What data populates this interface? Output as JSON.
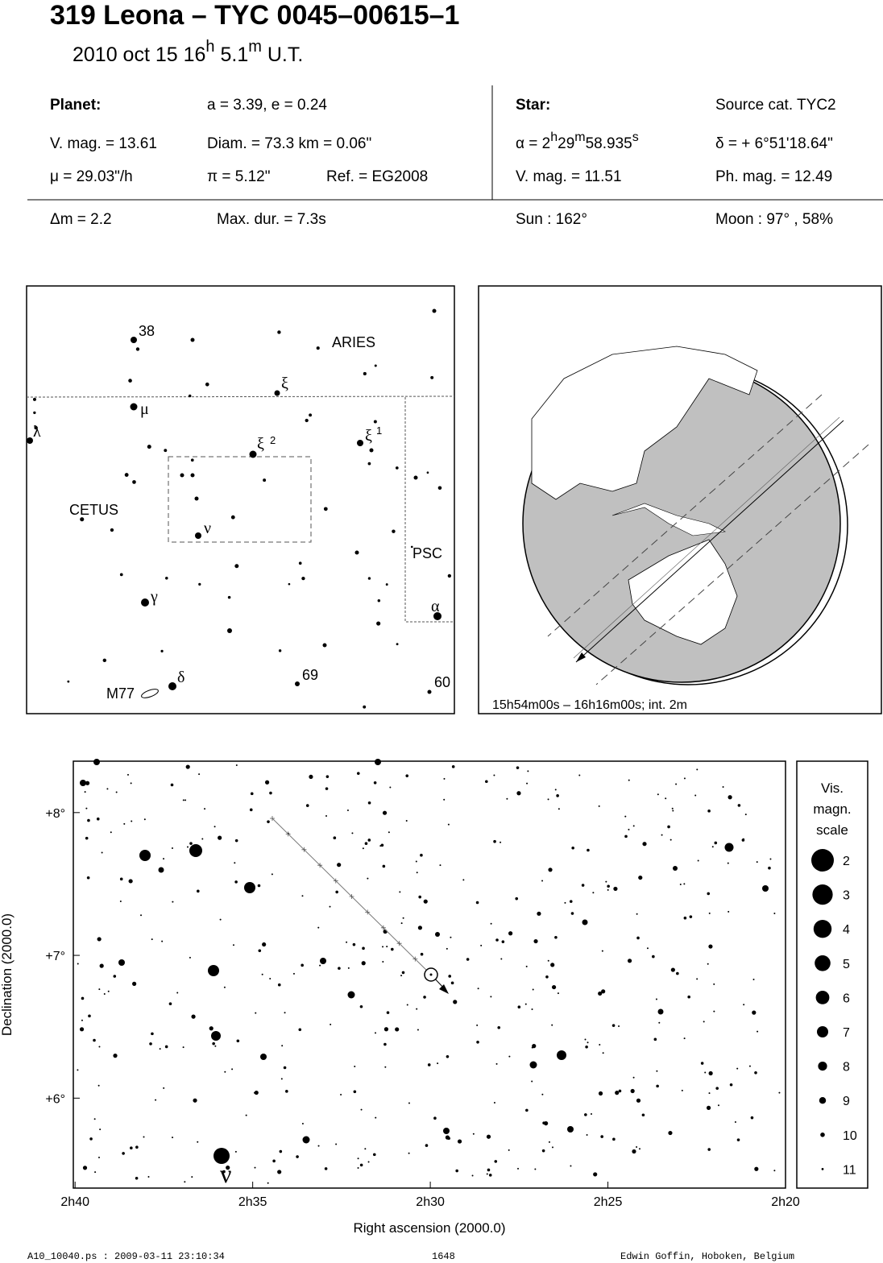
{
  "header": {
    "title": "319 Leona  –  TYC 0045–00615–1",
    "subtitle": [
      "2010 oct 15  16",
      "h",
      " 5.1",
      "m",
      " U.T."
    ]
  },
  "info": {
    "planet_heading": "Planet:",
    "orbit": "a = 3.39, e = 0.24",
    "planet_vmag": "V. mag. = 13.61",
    "diameter": "Diam. = 73.3 km = 0.06\"",
    "motion": "μ =  29.03\"/h",
    "parallax": "π =  5.12\"",
    "reference": "Ref. = EG2008",
    "star_heading": "Star:",
    "source": "Source cat.  TYC2",
    "ra": [
      "α =  2",
      "h",
      "29",
      "m",
      "58.935",
      "s"
    ],
    "dec": "δ = + 6°51'18.64\"",
    "star_vmag": "V. mag. = 11.51",
    "star_phmag": "Ph. mag. = 12.49",
    "delta_mag": "Δm = 2.2",
    "max_duration": "Max. dur. = 7.3s",
    "sun": "Sun : 162°",
    "moon": "Moon :  97° , 58%"
  },
  "sky_map": {
    "labels": [
      "38",
      "ARIES",
      "ξ",
      "μ",
      "λ",
      "ξ",
      "2",
      "ξ",
      "1",
      "CETUS",
      "ν",
      "PSC",
      "γ",
      "α",
      "δ",
      "M77",
      "69",
      "60"
    ]
  },
  "globe": {
    "caption": "15h54m00s – 16h16m00s; int.  2m"
  },
  "finder_chart": {
    "xlabel": "Right ascension (2000.0)",
    "ylabel": "Declination (2000.0)",
    "xlim": [
      40.05,
      20
    ],
    "ylim": [
      5.37,
      8.36
    ],
    "xticks": [
      {
        "value": 40,
        "label": "2h40"
      },
      {
        "value": 35,
        "label": "2h35"
      },
      {
        "value": 30,
        "label": "2h30"
      },
      {
        "value": 25,
        "label": "2h25"
      },
      {
        "value": 20,
        "label": "2h20"
      }
    ],
    "yticks": [
      {
        "value": 6,
        "label": "+6°"
      },
      {
        "value": 7,
        "label": "+7°"
      },
      {
        "value": 8,
        "label": "+8°"
      }
    ],
    "star_label": "ν",
    "legend": {
      "title": [
        "Vis.",
        "magn.",
        "scale"
      ],
      "magnitudes": [
        2,
        3,
        4,
        5,
        6,
        7,
        8,
        9,
        10,
        11
      ]
    }
  },
  "footer": {
    "file": "A10_10040.ps : 2009-03-11 23:10:34",
    "number": "1648",
    "author": "Edwin Goffin, Hoboken, Belgium"
  }
}
